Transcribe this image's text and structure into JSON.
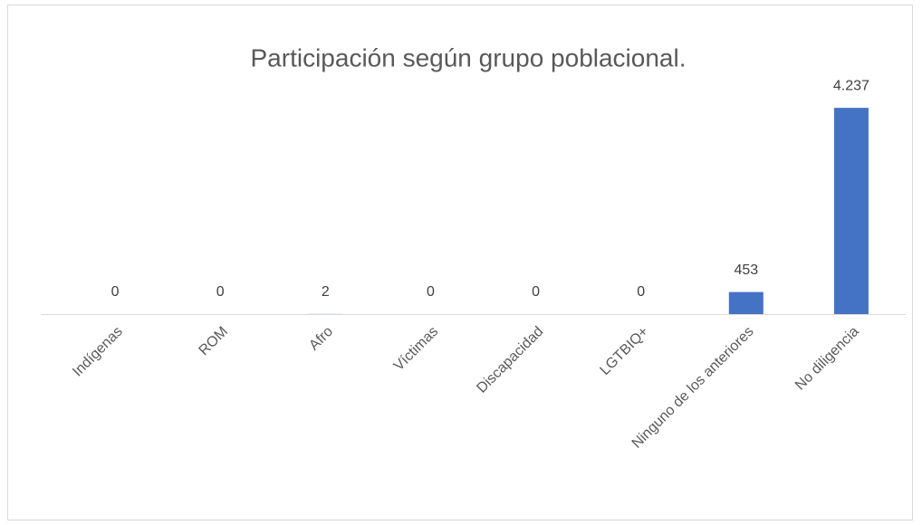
{
  "chart_data": {
    "type": "bar",
    "title": "Participación según grupo poblacional.",
    "categories": [
      "Indígenas",
      "ROM",
      "Afro",
      "Víctimas",
      "Discapacidad",
      "LGTBIQ+",
      "Ninguno de los anteriores",
      "No diligencia"
    ],
    "values": [
      0,
      0,
      2,
      0,
      0,
      0,
      453,
      4237
    ],
    "value_labels": [
      "0",
      "0",
      "2",
      "0",
      "0",
      "0",
      "453",
      "4.237"
    ],
    "color": "#4472c4",
    "ylim": [
      0,
      4500
    ]
  }
}
